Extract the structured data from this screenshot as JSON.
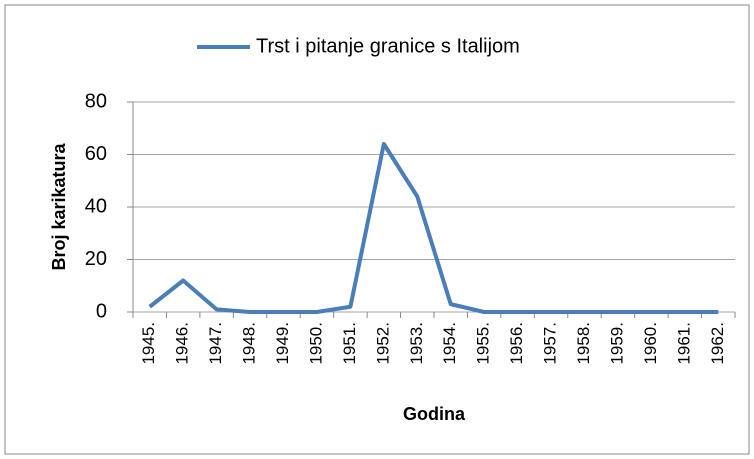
{
  "chart_data": {
    "type": "line",
    "categories": [
      "1945.",
      "1946.",
      "1947.",
      "1948.",
      "1949.",
      "1950.",
      "1951.",
      "1952.",
      "1953.",
      "1954.",
      "1955.",
      "1956.",
      "1957.",
      "1958.",
      "1959.",
      "1960.",
      "1961.",
      "1962."
    ],
    "series": [
      {
        "name": "Trst i pitanje granice s Italijom",
        "color": "#4a7ebb",
        "values": [
          2,
          12,
          1,
          0,
          0,
          0,
          2,
          64,
          44,
          3,
          0,
          0,
          0,
          0,
          0,
          0,
          0,
          0
        ]
      }
    ],
    "ylim": [
      0,
      80
    ],
    "yticks": [
      0,
      20,
      40,
      60,
      80
    ],
    "grid": true,
    "legend": "top",
    "ylabel": "Broj karikatura",
    "xlabel": "Godina"
  }
}
